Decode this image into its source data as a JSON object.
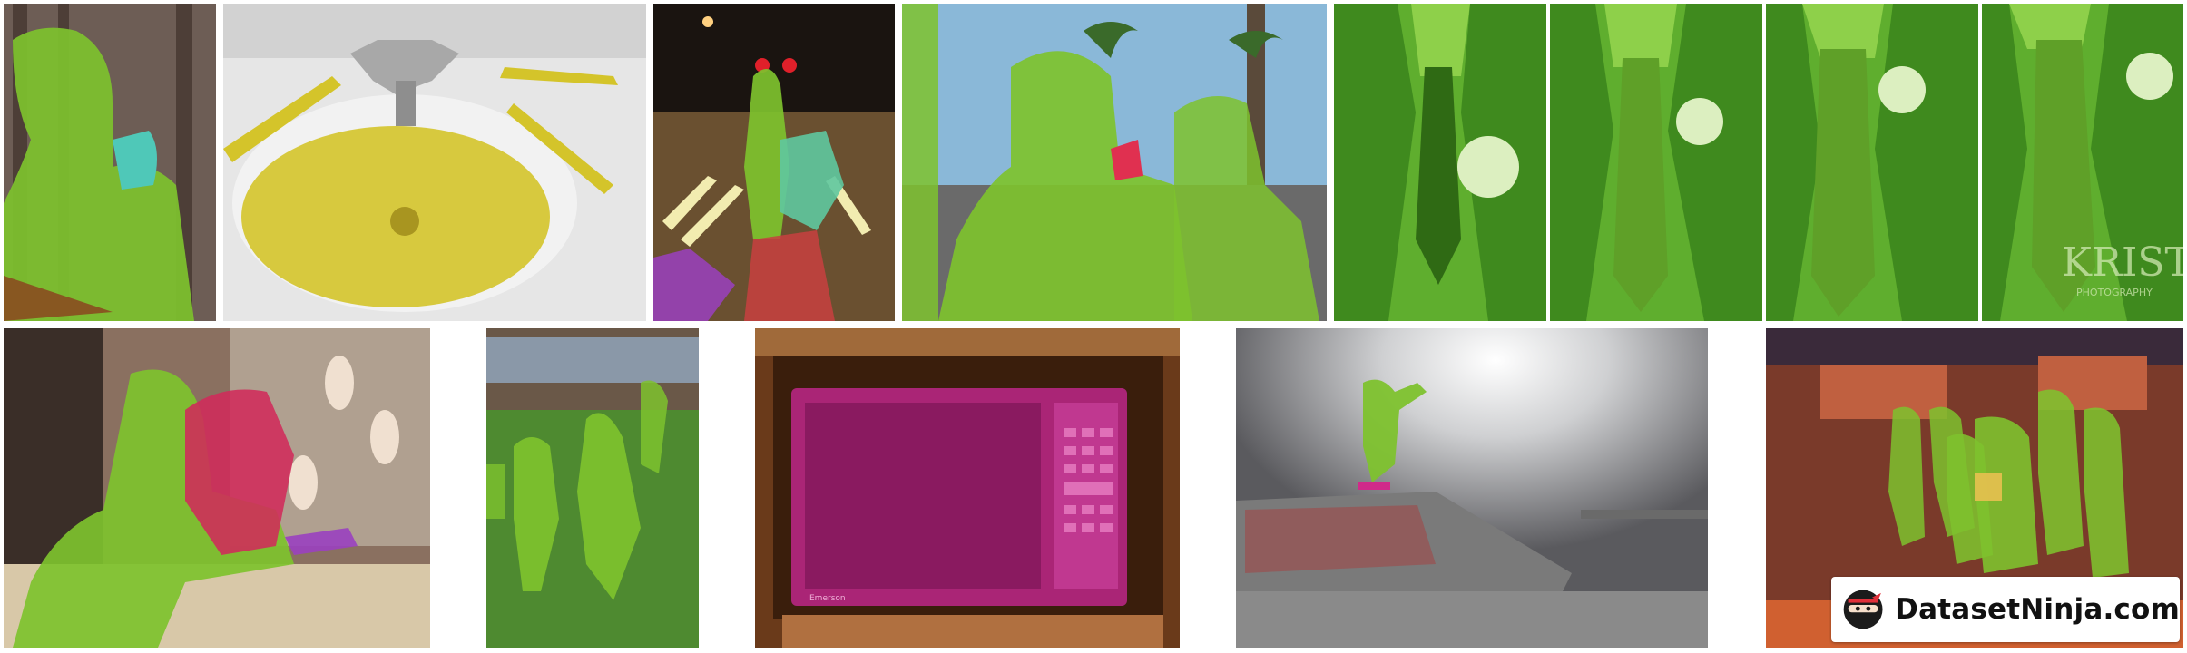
{
  "watermark": {
    "brand": "DatasetNinja.com",
    "icon": "ninja-logo-icon"
  },
  "tiles": [
    {
      "name": "tile-woman-eating",
      "subject": "woman-eating",
      "mask_color": "#7ec22e"
    },
    {
      "name": "tile-bathroom-sink",
      "subject": "sink-and-toothbrushes",
      "mask_color": "#d4c42a"
    },
    {
      "name": "tile-night-street",
      "subject": "people-on-street",
      "mask_color": "#7ec22e"
    },
    {
      "name": "tile-women-eating-outdoors",
      "subject": "women-eating",
      "mask_color": "#7ec22e"
    },
    {
      "name": "tile-suit-tie-1",
      "subject": "suit-tie",
      "mask_color": "#5fae2e"
    },
    {
      "name": "tile-suit-tie-2",
      "subject": "suit-tie",
      "mask_color": "#5fae2e"
    },
    {
      "name": "tile-suit-tie-3",
      "subject": "suit-tie",
      "mask_color": "#5fae2e"
    },
    {
      "name": "tile-suit-tie-4",
      "subject": "suit-tie",
      "mask_color": "#5fae2e",
      "watermark_text": "KRISTA",
      "watermark_subtext": "PHOTOGRAPHY"
    },
    {
      "name": "tile-girl-with-dog",
      "subject": "girl-and-dog",
      "mask_color": "#7ec22e"
    },
    {
      "name": "tile-soccer-field",
      "subject": "players",
      "mask_color": "#7ec22e"
    },
    {
      "name": "tile-microwave",
      "subject": "microwave",
      "mask_color": "#b0267c",
      "brand_text": "Emerson"
    },
    {
      "name": "tile-skateboarder",
      "subject": "skateboarder",
      "mask_color": "#7ec22e"
    },
    {
      "name": "tile-crowd-indoors",
      "subject": "people-in-hall",
      "mask_color": "#7ec22e"
    }
  ]
}
